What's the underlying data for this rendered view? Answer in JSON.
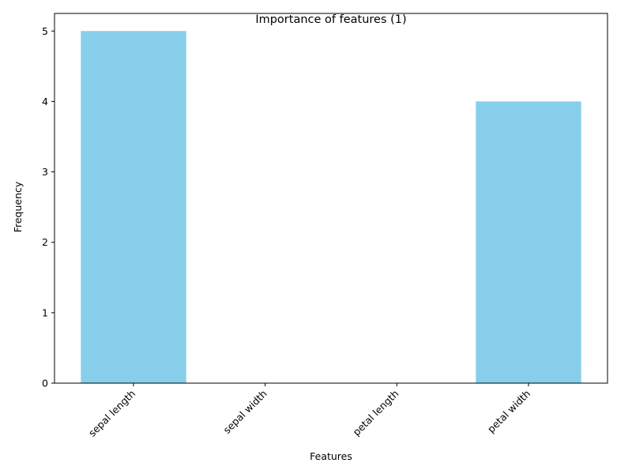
{
  "chart_data": {
    "type": "bar",
    "title": "Importance of features (1)",
    "xlabel": "Features",
    "ylabel": "Frequency",
    "categories": [
      "sepal length",
      "sepal width",
      "petal length",
      "petal width"
    ],
    "values": [
      5,
      0,
      0,
      4
    ],
    "ylim": [
      0,
      5.25
    ],
    "yticks": [
      0,
      1,
      2,
      3,
      4,
      5
    ],
    "bar_color": "#87CEEB",
    "grid": false,
    "legend": "none"
  }
}
